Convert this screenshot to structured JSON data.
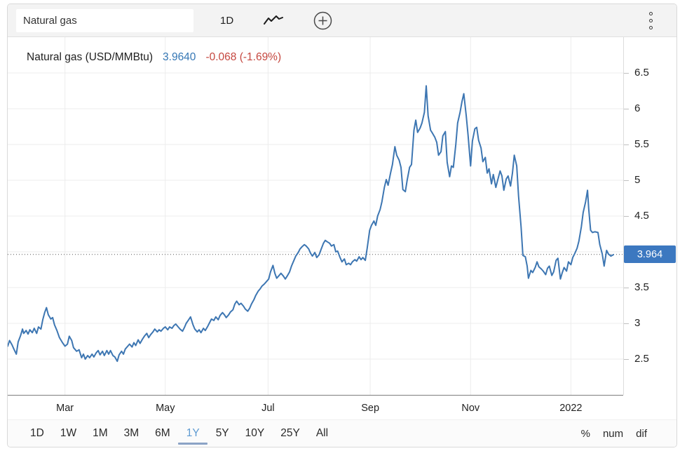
{
  "topbar": {
    "search_value": "Natural gas",
    "interval_label": "1D",
    "icons": [
      "line-chart-icon",
      "plus-circle-icon",
      "kebab-menu-icon"
    ]
  },
  "legend": {
    "title": "Natural gas (USD/MMBtu)",
    "price": "3.9640",
    "change": "-0.068 (-1.69%)"
  },
  "price_axis": {
    "badge_label": "3.964",
    "ticks": [
      {
        "label": "6.5",
        "value": 6.5
      },
      {
        "label": "6",
        "value": 6.0
      },
      {
        "label": "5.5",
        "value": 5.5
      },
      {
        "label": "5",
        "value": 5.0
      },
      {
        "label": "4.5",
        "value": 4.5
      },
      {
        "label": "4",
        "value": 4.0
      },
      {
        "label": "3.5",
        "value": 3.5
      },
      {
        "label": "3",
        "value": 3.0
      },
      {
        "label": "2.5",
        "value": 2.5
      }
    ]
  },
  "ranges": {
    "items": [
      "1D",
      "1W",
      "1M",
      "3M",
      "6M",
      "1Y",
      "5Y",
      "10Y",
      "25Y",
      "All"
    ],
    "active": "1Y"
  },
  "formats": {
    "items": [
      "%",
      "num",
      "dif"
    ]
  },
  "colors": {
    "line": "#3d76b2",
    "badge_bg": "#3c78c0",
    "badge_text": "#ffffff",
    "price_text": "#3577b5",
    "change_text": "#c5473f",
    "active_range": "#5f9bd2",
    "active_underline": "#8ba3c6",
    "grid": "#ececec",
    "dotted": "#555555"
  },
  "chart_data": {
    "type": "line",
    "title": "Natural gas (USD/MMBtu)",
    "unit": "USD/MMBtu",
    "current_value": 3.964,
    "change": -0.068,
    "change_pct": "-1.69%",
    "range_shown": "1Y",
    "ylim": [
      2.0,
      7.0
    ],
    "y_gridlines": [
      6.5,
      6,
      5.5,
      5,
      4.5,
      4,
      3.5,
      3,
      2.5
    ],
    "x_ticks": [
      {
        "label": "Mar",
        "pos": 9.3
      },
      {
        "label": "May",
        "pos": 25.6
      },
      {
        "label": "Jul",
        "pos": 42.3
      },
      {
        "label": "Sep",
        "pos": 58.9
      },
      {
        "label": "Nov",
        "pos": 75.2
      },
      {
        "label": "2022",
        "pos": 91.5
      }
    ],
    "x_pos_unit": "percent of visible 1Y window (late Jan 2021 - late Jan 2022)",
    "series": [
      {
        "name": "Natural gas",
        "points": [
          [
            0,
            2.68
          ],
          [
            0.3,
            2.76
          ],
          [
            0.7,
            2.7
          ],
          [
            1.0,
            2.64
          ],
          [
            1.4,
            2.57
          ],
          [
            1.7,
            2.74
          ],
          [
            2.1,
            2.83
          ],
          [
            2.4,
            2.92
          ],
          [
            2.6,
            2.86
          ],
          [
            3.0,
            2.9
          ],
          [
            3.3,
            2.85
          ],
          [
            3.6,
            2.91
          ],
          [
            4.0,
            2.87
          ],
          [
            4.3,
            2.93
          ],
          [
            4.7,
            2.86
          ],
          [
            5.0,
            2.95
          ],
          [
            5.4,
            2.92
          ],
          [
            5.7,
            3.05
          ],
          [
            6.0,
            3.15
          ],
          [
            6.3,
            3.22
          ],
          [
            6.6,
            3.12
          ],
          [
            7.0,
            3.06
          ],
          [
            7.3,
            3.08
          ],
          [
            7.6,
            2.98
          ],
          [
            8.0,
            2.9
          ],
          [
            8.4,
            2.8
          ],
          [
            8.9,
            2.73
          ],
          [
            9.3,
            2.68
          ],
          [
            9.7,
            2.71
          ],
          [
            10.0,
            2.82
          ],
          [
            10.4,
            2.76
          ],
          [
            10.7,
            2.66
          ],
          [
            11.2,
            2.61
          ],
          [
            11.6,
            2.63
          ],
          [
            12.0,
            2.52
          ],
          [
            12.3,
            2.57
          ],
          [
            12.6,
            2.5
          ],
          [
            13.0,
            2.55
          ],
          [
            13.3,
            2.52
          ],
          [
            13.7,
            2.57
          ],
          [
            14.0,
            2.53
          ],
          [
            14.4,
            2.59
          ],
          [
            14.7,
            2.62
          ],
          [
            15.0,
            2.56
          ],
          [
            15.4,
            2.61
          ],
          [
            15.7,
            2.55
          ],
          [
            16.1,
            2.62
          ],
          [
            16.4,
            2.57
          ],
          [
            16.7,
            2.62
          ],
          [
            17.1,
            2.55
          ],
          [
            17.4,
            2.53
          ],
          [
            17.8,
            2.47
          ],
          [
            18.1,
            2.56
          ],
          [
            18.5,
            2.61
          ],
          [
            18.8,
            2.57
          ],
          [
            19.1,
            2.64
          ],
          [
            19.5,
            2.68
          ],
          [
            19.8,
            2.71
          ],
          [
            20.2,
            2.67
          ],
          [
            20.5,
            2.73
          ],
          [
            20.8,
            2.69
          ],
          [
            21.2,
            2.77
          ],
          [
            21.5,
            2.72
          ],
          [
            21.9,
            2.78
          ],
          [
            22.2,
            2.82
          ],
          [
            22.6,
            2.86
          ],
          [
            22.9,
            2.8
          ],
          [
            23.2,
            2.84
          ],
          [
            23.6,
            2.88
          ],
          [
            23.9,
            2.92
          ],
          [
            24.3,
            2.88
          ],
          [
            24.6,
            2.91
          ],
          [
            24.9,
            2.89
          ],
          [
            25.3,
            2.93
          ],
          [
            25.6,
            2.95
          ],
          [
            26.0,
            2.91
          ],
          [
            26.3,
            2.95
          ],
          [
            26.7,
            2.93
          ],
          [
            27.0,
            2.97
          ],
          [
            27.3,
            2.99
          ],
          [
            27.7,
            2.95
          ],
          [
            28.0,
            2.92
          ],
          [
            28.4,
            2.89
          ],
          [
            28.7,
            2.94
          ],
          [
            29.0,
            3.0
          ],
          [
            29.4,
            3.05
          ],
          [
            29.7,
            3.09
          ],
          [
            30.1,
            2.98
          ],
          [
            30.4,
            2.92
          ],
          [
            30.8,
            2.88
          ],
          [
            31.1,
            2.91
          ],
          [
            31.4,
            2.87
          ],
          [
            31.8,
            2.93
          ],
          [
            32.1,
            2.9
          ],
          [
            32.5,
            2.96
          ],
          [
            32.8,
            3.01
          ],
          [
            33.1,
            3.06
          ],
          [
            33.5,
            3.04
          ],
          [
            33.8,
            3.09
          ],
          [
            34.2,
            3.05
          ],
          [
            34.5,
            3.11
          ],
          [
            34.9,
            3.15
          ],
          [
            35.2,
            3.12
          ],
          [
            35.5,
            3.08
          ],
          [
            35.9,
            3.12
          ],
          [
            36.2,
            3.16
          ],
          [
            36.6,
            3.19
          ],
          [
            36.9,
            3.27
          ],
          [
            37.2,
            3.31
          ],
          [
            37.6,
            3.26
          ],
          [
            37.9,
            3.28
          ],
          [
            38.3,
            3.24
          ],
          [
            38.6,
            3.2
          ],
          [
            39.0,
            3.17
          ],
          [
            39.3,
            3.21
          ],
          [
            39.6,
            3.27
          ],
          [
            40.0,
            3.33
          ],
          [
            40.3,
            3.39
          ],
          [
            40.7,
            3.45
          ],
          [
            41.0,
            3.48
          ],
          [
            41.3,
            3.52
          ],
          [
            41.7,
            3.55
          ],
          [
            42.0,
            3.58
          ],
          [
            42.4,
            3.62
          ],
          [
            42.7,
            3.72
          ],
          [
            43.1,
            3.81
          ],
          [
            43.4,
            3.7
          ],
          [
            43.7,
            3.63
          ],
          [
            44.1,
            3.67
          ],
          [
            44.4,
            3.7
          ],
          [
            44.8,
            3.66
          ],
          [
            45.1,
            3.62
          ],
          [
            45.4,
            3.66
          ],
          [
            45.8,
            3.72
          ],
          [
            46.1,
            3.8
          ],
          [
            46.5,
            3.88
          ],
          [
            46.8,
            3.94
          ],
          [
            47.2,
            3.99
          ],
          [
            47.5,
            4.04
          ],
          [
            47.8,
            4.07
          ],
          [
            48.2,
            4.1
          ],
          [
            48.5,
            4.08
          ],
          [
            48.9,
            4.04
          ],
          [
            49.2,
            3.98
          ],
          [
            49.5,
            3.94
          ],
          [
            49.9,
            3.99
          ],
          [
            50.2,
            3.92
          ],
          [
            50.6,
            3.96
          ],
          [
            50.9,
            4.03
          ],
          [
            51.3,
            4.12
          ],
          [
            51.6,
            4.16
          ],
          [
            51.9,
            4.14
          ],
          [
            52.3,
            4.12
          ],
          [
            52.6,
            4.08
          ],
          [
            53.0,
            4.1
          ],
          [
            53.3,
            4.0
          ],
          [
            53.6,
            4.01
          ],
          [
            54.0,
            3.92
          ],
          [
            54.3,
            3.86
          ],
          [
            54.7,
            3.9
          ],
          [
            55.0,
            3.82
          ],
          [
            55.4,
            3.84
          ],
          [
            55.7,
            3.82
          ],
          [
            56.0,
            3.86
          ],
          [
            56.4,
            3.89
          ],
          [
            56.7,
            3.87
          ],
          [
            57.1,
            3.93
          ],
          [
            57.4,
            3.89
          ],
          [
            57.7,
            3.92
          ],
          [
            58.1,
            3.88
          ],
          [
            58.4,
            4.05
          ],
          [
            58.8,
            4.3
          ],
          [
            59.1,
            4.37
          ],
          [
            59.5,
            4.43
          ],
          [
            59.8,
            4.37
          ],
          [
            60.1,
            4.5
          ],
          [
            60.5,
            4.59
          ],
          [
            60.8,
            4.7
          ],
          [
            61.2,
            4.9
          ],
          [
            61.5,
            5.01
          ],
          [
            61.8,
            4.93
          ],
          [
            62.2,
            5.1
          ],
          [
            62.5,
            5.22
          ],
          [
            62.9,
            5.47
          ],
          [
            63.2,
            5.35
          ],
          [
            63.6,
            5.28
          ],
          [
            63.9,
            5.18
          ],
          [
            64.2,
            4.87
          ],
          [
            64.6,
            4.84
          ],
          [
            64.9,
            5.0
          ],
          [
            65.3,
            5.18
          ],
          [
            65.6,
            5.22
          ],
          [
            66.0,
            5.7
          ],
          [
            66.3,
            5.84
          ],
          [
            66.6,
            5.67
          ],
          [
            67.0,
            5.73
          ],
          [
            67.3,
            5.8
          ],
          [
            67.7,
            5.95
          ],
          [
            68.0,
            6.32
          ],
          [
            68.3,
            5.9
          ],
          [
            68.7,
            5.7
          ],
          [
            69.0,
            5.66
          ],
          [
            69.4,
            5.6
          ],
          [
            69.7,
            5.53
          ],
          [
            70.0,
            5.35
          ],
          [
            70.4,
            5.4
          ],
          [
            70.7,
            5.62
          ],
          [
            71.1,
            5.68
          ],
          [
            71.4,
            5.25
          ],
          [
            71.8,
            5.05
          ],
          [
            72.1,
            5.2
          ],
          [
            72.4,
            5.18
          ],
          [
            72.8,
            5.5
          ],
          [
            73.1,
            5.8
          ],
          [
            73.5,
            5.95
          ],
          [
            73.8,
            6.1
          ],
          [
            74.1,
            6.21
          ],
          [
            74.5,
            5.9
          ],
          [
            74.8,
            5.63
          ],
          [
            75.2,
            5.2
          ],
          [
            75.5,
            5.55
          ],
          [
            75.9,
            5.72
          ],
          [
            76.2,
            5.74
          ],
          [
            76.5,
            5.56
          ],
          [
            76.9,
            5.45
          ],
          [
            77.2,
            5.26
          ],
          [
            77.6,
            5.32
          ],
          [
            77.9,
            5.1
          ],
          [
            78.2,
            5.16
          ],
          [
            78.6,
            4.95
          ],
          [
            78.9,
            5.08
          ],
          [
            79.3,
            4.9
          ],
          [
            79.6,
            5.0
          ],
          [
            80.0,
            5.13
          ],
          [
            80.3,
            5.06
          ],
          [
            80.6,
            4.86
          ],
          [
            81.0,
            5.02
          ],
          [
            81.3,
            5.06
          ],
          [
            81.7,
            4.92
          ],
          [
            82.0,
            5.1
          ],
          [
            82.3,
            5.35
          ],
          [
            82.7,
            5.2
          ],
          [
            83.0,
            4.78
          ],
          [
            83.4,
            4.35
          ],
          [
            83.7,
            3.95
          ],
          [
            84.1,
            3.93
          ],
          [
            84.4,
            3.8
          ],
          [
            84.6,
            3.63
          ],
          [
            85.0,
            3.74
          ],
          [
            85.3,
            3.71
          ],
          [
            85.7,
            3.78
          ],
          [
            86.0,
            3.86
          ],
          [
            86.3,
            3.79
          ],
          [
            86.7,
            3.76
          ],
          [
            87.0,
            3.73
          ],
          [
            87.4,
            3.68
          ],
          [
            87.7,
            3.77
          ],
          [
            88.0,
            3.8
          ],
          [
            88.4,
            3.67
          ],
          [
            88.7,
            3.72
          ],
          [
            89.1,
            3.88
          ],
          [
            89.4,
            3.91
          ],
          [
            89.8,
            3.62
          ],
          [
            90.1,
            3.71
          ],
          [
            90.4,
            3.78
          ],
          [
            90.8,
            3.73
          ],
          [
            91.1,
            3.86
          ],
          [
            91.5,
            3.82
          ],
          [
            91.8,
            3.92
          ],
          [
            92.1,
            3.97
          ],
          [
            92.5,
            4.05
          ],
          [
            92.8,
            4.15
          ],
          [
            93.2,
            4.35
          ],
          [
            93.5,
            4.55
          ],
          [
            93.9,
            4.7
          ],
          [
            94.2,
            4.86
          ],
          [
            94.4,
            4.6
          ],
          [
            94.7,
            4.3
          ],
          [
            95.0,
            4.27
          ],
          [
            95.4,
            4.28
          ],
          [
            95.9,
            4.27
          ],
          [
            96.2,
            4.1
          ],
          [
            96.6,
            3.97
          ],
          [
            96.9,
            3.8
          ],
          [
            97.3,
            4.02
          ],
          [
            97.6,
            3.97
          ],
          [
            98.0,
            3.94
          ],
          [
            98.4,
            3.96
          ]
        ]
      }
    ]
  }
}
